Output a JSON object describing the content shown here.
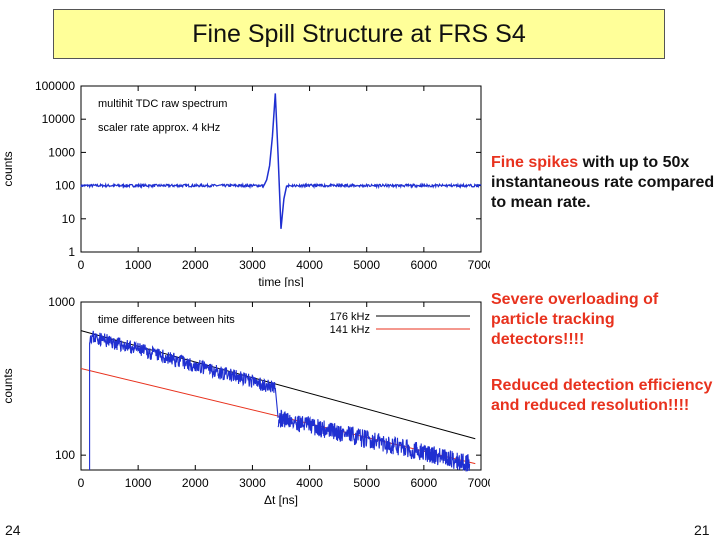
{
  "slide": {
    "title": "Fine Spill Structure at FRS S4",
    "page_left": "24",
    "page_right": "21"
  },
  "notes": {
    "note1_red": "Fine spikes",
    "note1_rest": " with up to 50x instantaneous rate compared to mean rate.",
    "note2": "Severe overloading of particle tracking detectors!!!!",
    "note3": "Reduced detection efficiency and reduced resolution!!!!"
  },
  "colors": {
    "data": "#1f2fd1",
    "fit_176": "#000000",
    "fit_141": "#e8321e",
    "title_bg": "#ffff99",
    "accent": "#e8321e"
  },
  "chart_data": [
    {
      "type": "line",
      "annotations": [
        "multihit TDC raw spectrum",
        "scaler rate approx. 4 kHz"
      ],
      "xlabel": "time [ns]",
      "ylabel": "counts",
      "xlim": [
        0,
        7000
      ],
      "ylim": [
        1,
        100000
      ],
      "yscale": "log",
      "x_ticks": [
        "0",
        "1000",
        "2000",
        "3000",
        "4000",
        "5000",
        "6000",
        "7000"
      ],
      "y_ticks": [
        "1",
        "10",
        "100",
        "1000",
        "10000",
        "100000"
      ],
      "grid": false,
      "series": [
        {
          "x": [
            0,
            3200,
            3250,
            3300,
            3350,
            3400,
            3450,
            3500,
            3550,
            3600,
            7000
          ],
          "values": [
            100,
            100,
            150,
            400,
            3000,
            60000,
            800,
            5,
            40,
            100,
            100
          ]
        }
      ]
    },
    {
      "type": "line",
      "annotations": [
        "time difference between hits"
      ],
      "xlabel": "Δt [ns]",
      "ylabel": "counts",
      "xlim": [
        0,
        7000
      ],
      "ylim": [
        80,
        1000
      ],
      "yscale": "log",
      "x_ticks": [
        "0",
        "1000",
        "2000",
        "3000",
        "4000",
        "5000",
        "6000",
        "7000"
      ],
      "y_ticks": [
        "100",
        "1000"
      ],
      "grid": false,
      "legend": "top-right",
      "series": [
        {
          "name": "176 kHz",
          "color": "#000000",
          "x": [
            0,
            6900
          ],
          "values": [
            650,
            128
          ]
        },
        {
          "name": "141 kHz",
          "color": "#e8321e",
          "x": [
            0,
            6900
          ],
          "values": [
            368,
            88
          ]
        },
        {
          "x": [
            150,
            3400,
            3450,
            6800
          ],
          "values": [
            600,
            275,
            175,
            88
          ]
        }
      ]
    }
  ]
}
